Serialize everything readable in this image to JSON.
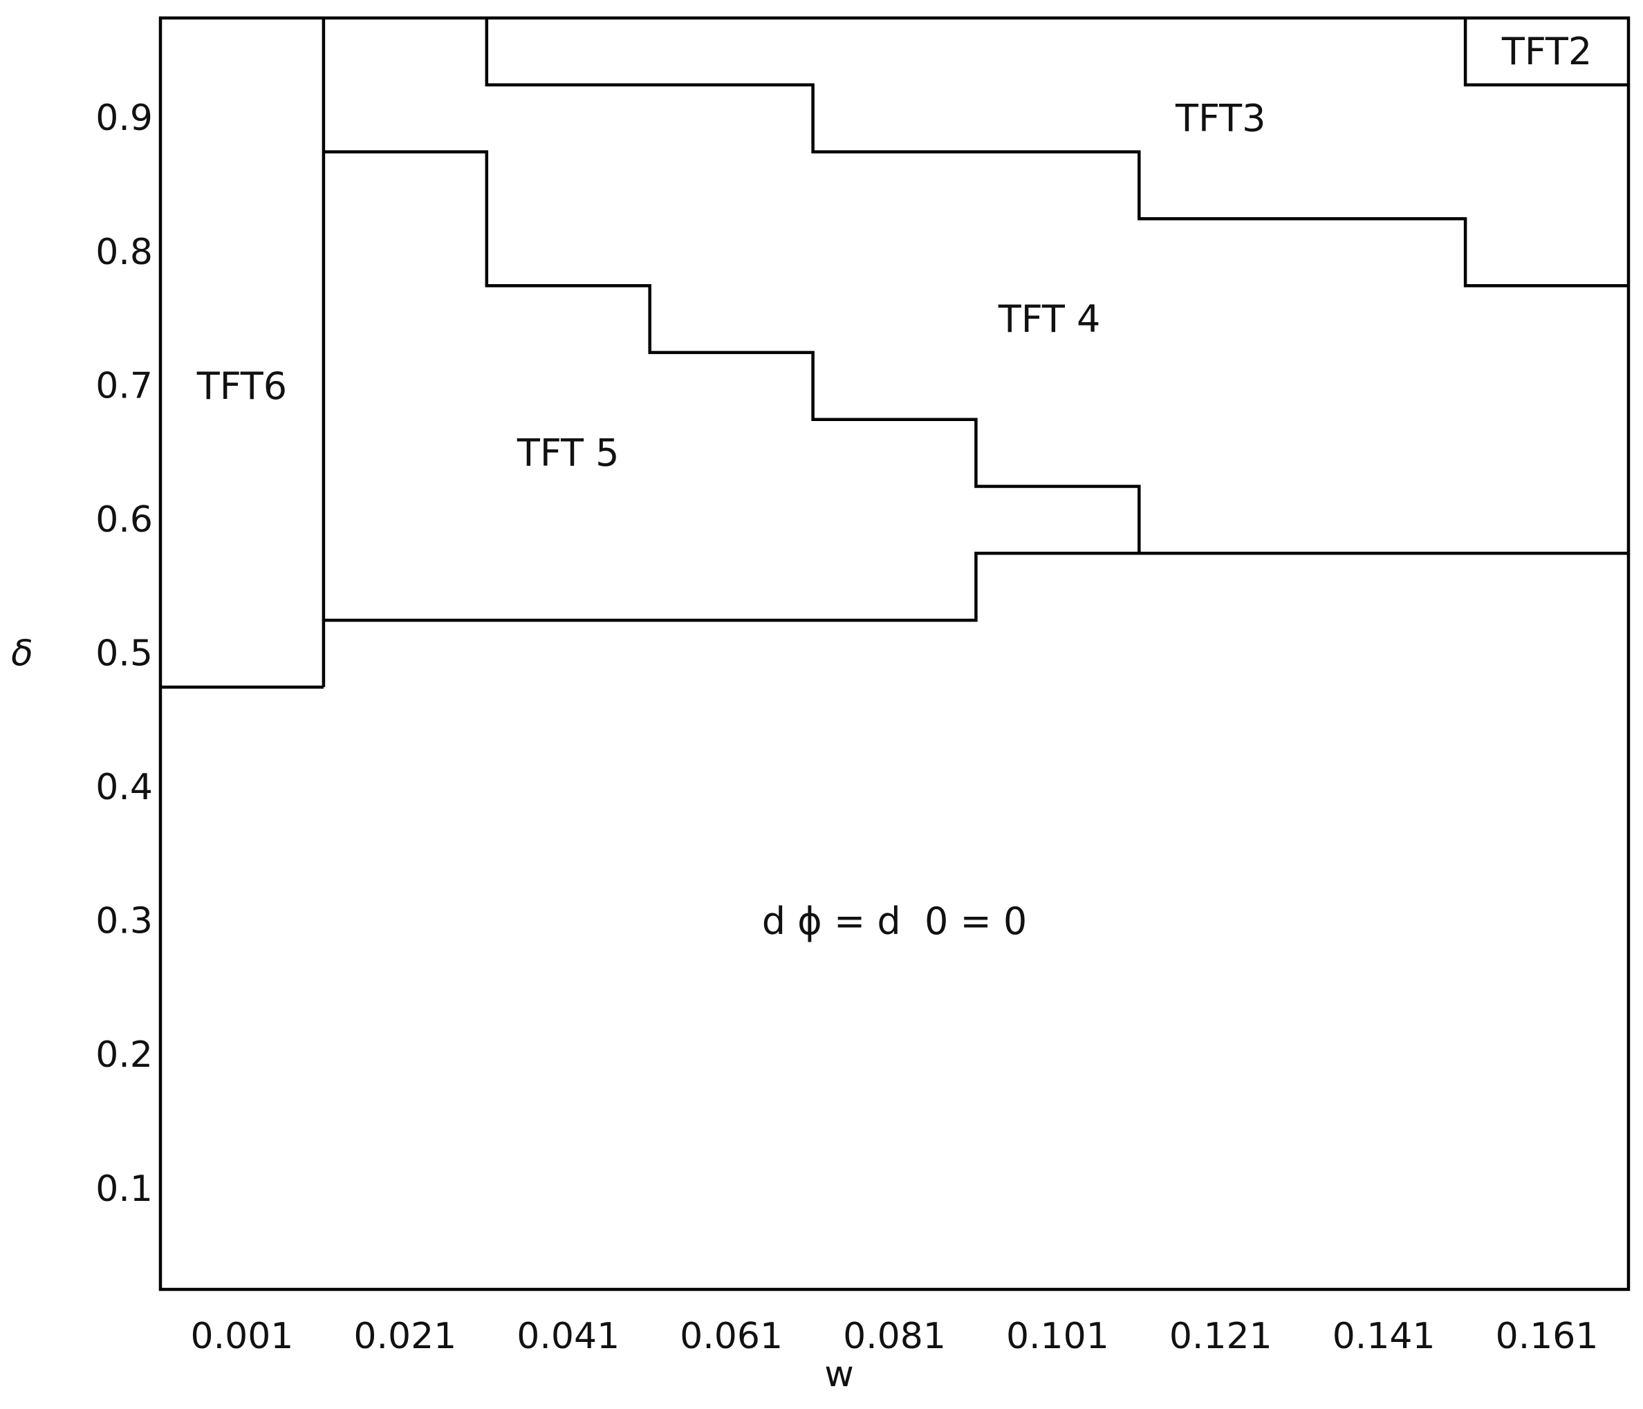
{
  "chart_data": {
    "type": "region-map",
    "title": "",
    "xlabel": "w",
    "ylabel": "δ",
    "x_ticks": [
      "0.001",
      "0.021",
      "0.041",
      "0.061",
      "0.081",
      "0.101",
      "0.121",
      "0.141",
      "0.161"
    ],
    "y_ticks": [
      "0.1",
      "0.2",
      "0.3",
      "0.4",
      "0.5",
      "0.6",
      "0.7",
      "0.8",
      "0.9"
    ],
    "xlim": [
      -0.009,
      0.171
    ],
    "ylim": [
      0.025,
      0.975
    ],
    "grid": false,
    "legend": "none",
    "regions": [
      {
        "name": "TFT2",
        "label": "TFT2",
        "label_at": [
          0.161,
          0.95
        ]
      },
      {
        "name": "TFT3",
        "label": "TFT3",
        "label_at": [
          0.121,
          0.9
        ]
      },
      {
        "name": "TFT4",
        "label": "TFT 4",
        "label_at": [
          0.1,
          0.75
        ]
      },
      {
        "name": "TFT5",
        "label": "TFT 5",
        "label_at": [
          0.041,
          0.65
        ]
      },
      {
        "name": "TFT6",
        "label": "TFT6",
        "label_at": [
          0.001,
          0.7
        ]
      },
      {
        "name": "zero",
        "label": "d ϕ = d  0 = 0",
        "label_at": [
          0.081,
          0.3
        ]
      }
    ],
    "boundaries": [
      {
        "name": "tft6-right-edge",
        "points": [
          [
            0.011,
            0.975
          ],
          [
            0.011,
            0.475
          ]
        ]
      },
      {
        "name": "tft6-bottom-edge",
        "points": [
          [
            -0.009,
            0.475
          ],
          [
            0.011,
            0.475
          ]
        ]
      },
      {
        "name": "tft2-box",
        "points": [
          [
            0.151,
            0.975
          ],
          [
            0.151,
            0.925
          ],
          [
            0.171,
            0.925
          ]
        ]
      },
      {
        "name": "tft3-lower-boundary",
        "points": [
          [
            0.031,
            0.975
          ],
          [
            0.031,
            0.925
          ],
          [
            0.071,
            0.925
          ],
          [
            0.071,
            0.875
          ],
          [
            0.111,
            0.875
          ],
          [
            0.111,
            0.825
          ],
          [
            0.151,
            0.825
          ],
          [
            0.151,
            0.775
          ],
          [
            0.171,
            0.775
          ]
        ]
      },
      {
        "name": "tft5-upper-boundary",
        "points": [
          [
            0.011,
            0.875
          ],
          [
            0.031,
            0.875
          ],
          [
            0.031,
            0.775
          ],
          [
            0.051,
            0.775
          ],
          [
            0.051,
            0.725
          ],
          [
            0.071,
            0.725
          ],
          [
            0.071,
            0.675
          ],
          [
            0.091,
            0.675
          ],
          [
            0.091,
            0.625
          ],
          [
            0.111,
            0.625
          ],
          [
            0.111,
            0.575
          ]
        ]
      },
      {
        "name": "zero-region-upper-boundary",
        "points": [
          [
            0.011,
            0.525
          ],
          [
            0.091,
            0.525
          ],
          [
            0.091,
            0.575
          ],
          [
            0.171,
            0.575
          ]
        ]
      }
    ]
  }
}
